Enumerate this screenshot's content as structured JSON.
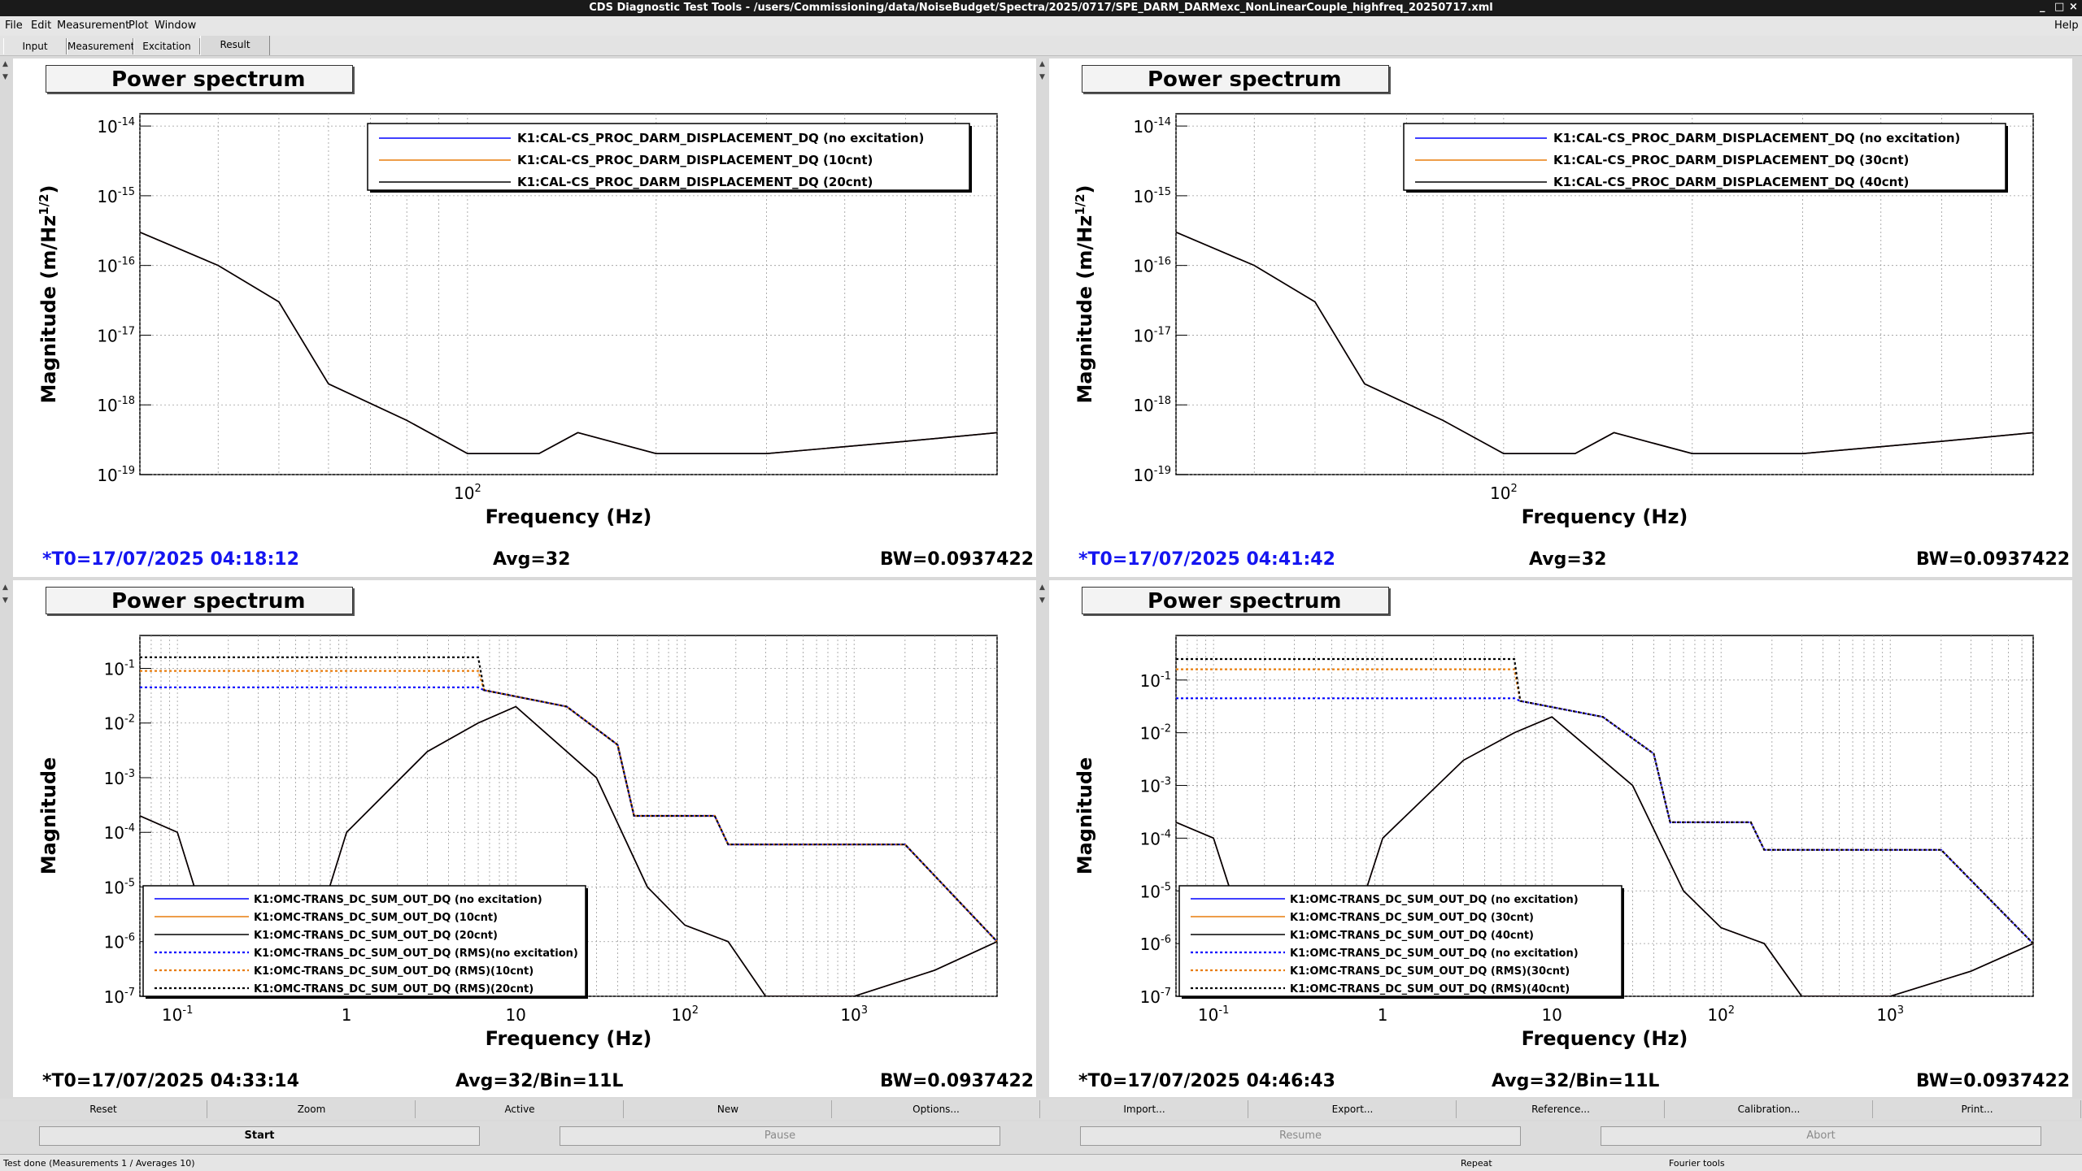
{
  "window": {
    "title": "CDS Diagnostic Test Tools - /users/Commissioning/data/NoiseBudget/Spectra/2025/0717/SPE_DARM_DARMexc_NonLinearCouple_highfreq_20250717.xml",
    "controls": [
      "_",
      "□",
      "×"
    ]
  },
  "menu": {
    "items": [
      "File",
      "Edit",
      "Measurement",
      "Plot",
      "Window"
    ],
    "help": "Help"
  },
  "tabs": [
    "Input",
    "Measurement",
    "Excitation",
    "Result"
  ],
  "colors": {
    "blue": "#0000ff",
    "orange": "#e87d0d",
    "black": "#000000",
    "timestamp_blue": "#1515f0"
  },
  "panels": [
    {
      "title": "Power spectrum",
      "ylabel": "Magnitude (m/Hz",
      "ylabel_sup": "1/2",
      "ylabel_end": ")",
      "xlabel": "Frequency (Hz)",
      "legend": [
        "K1:CAL-CS_PROC_DARM_DISPLACEMENT_DQ (no excitation)",
        "K1:CAL-CS_PROC_DARM_DISPLACEMENT_DQ (10cnt)",
        "K1:CAL-CS_PROC_DARM_DISPLACEMENT_DQ (20cnt)"
      ],
      "t0": "*T0=17/07/2025 04:18:12",
      "avg": "Avg=32",
      "bw": "BW=0.0937422"
    },
    {
      "title": "Power spectrum",
      "ylabel": "Magnitude (m/Hz",
      "ylabel_sup": "1/2",
      "ylabel_end": ")",
      "xlabel": "Frequency (Hz)",
      "legend": [
        "K1:CAL-CS_PROC_DARM_DISPLACEMENT_DQ (no excitation)",
        "K1:CAL-CS_PROC_DARM_DISPLACEMENT_DQ (30cnt)",
        "K1:CAL-CS_PROC_DARM_DISPLACEMENT_DQ (40cnt)"
      ],
      "t0": "*T0=17/07/2025 04:41:42",
      "avg": "Avg=32",
      "bw": "BW=0.0937422"
    },
    {
      "title": "Power spectrum",
      "ylabel": "Magnitude",
      "xlabel": "Frequency (Hz)",
      "legend": [
        "K1:OMC-TRANS_DC_SUM_OUT_DQ (no excitation)",
        "K1:OMC-TRANS_DC_SUM_OUT_DQ (10cnt)",
        "K1:OMC-TRANS_DC_SUM_OUT_DQ (20cnt)",
        "K1:OMC-TRANS_DC_SUM_OUT_DQ (RMS)(no excitation)",
        "K1:OMC-TRANS_DC_SUM_OUT_DQ (RMS)(10cnt)",
        "K1:OMC-TRANS_DC_SUM_OUT_DQ (RMS)(20cnt)"
      ],
      "t0": "*T0=17/07/2025 04:33:14",
      "avg": "Avg=32/Bin=11L",
      "bw": "BW=0.0937422"
    },
    {
      "title": "Power spectrum",
      "ylabel": "Magnitude",
      "xlabel": "Frequency (Hz)",
      "legend": [
        "K1:OMC-TRANS_DC_SUM_OUT_DQ (no excitation)",
        "K1:OMC-TRANS_DC_SUM_OUT_DQ (30cnt)",
        "K1:OMC-TRANS_DC_SUM_OUT_DQ (40cnt)",
        "K1:OMC-TRANS_DC_SUM_OUT_DQ (no excitation)",
        "K1:OMC-TRANS_DC_SUM_OUT_DQ (RMS)(30cnt)",
        "K1:OMC-TRANS_DC_SUM_OUT_DQ (RMS)(40cnt)"
      ],
      "t0": "*T0=17/07/2025 04:46:43",
      "avg": "Avg=32/Bin=11L",
      "bw": "BW=0.0937422"
    }
  ],
  "chart_data": [
    {
      "type": "line",
      "xscale": "log",
      "yscale": "log",
      "grid": true,
      "legend_position": "top-right",
      "xlim": [
        30,
        700
      ],
      "ylim": [
        1e-19,
        1.5e-14
      ],
      "ytick_labels": [
        "10-14",
        "10-15",
        "10-16",
        "10-17",
        "10-18",
        "10-19"
      ],
      "xtick_labels": [
        "10 2"
      ],
      "series": [
        {
          "name": "K1:CAL-CS_PROC_DARM_DISPLACEMENT_DQ (no excitation)",
          "color": "#0000ff",
          "x": [
            30,
            40,
            50,
            60,
            80,
            100,
            130,
            150,
            200,
            300,
            500,
            700
          ],
          "y": [
            3e-16,
            1e-16,
            3e-17,
            2e-18,
            6e-19,
            2e-19,
            2e-19,
            4e-19,
            2e-19,
            2e-19,
            3e-19,
            4e-19
          ]
        },
        {
          "name": "K1:CAL-CS_PROC_DARM_DISPLACEMENT_DQ (10cnt)",
          "color": "#e87d0d",
          "x": [
            30,
            40,
            50,
            60,
            80,
            100,
            130,
            150,
            200,
            300,
            500,
            700
          ],
          "y": [
            3e-16,
            1e-16,
            3e-17,
            2e-18,
            6e-19,
            2e-19,
            2e-19,
            4e-19,
            2e-19,
            2e-19,
            3e-19,
            4e-19
          ]
        },
        {
          "name": "K1:CAL-CS_PROC_DARM_DISPLACEMENT_DQ (20cnt)",
          "color": "#000000",
          "x": [
            30,
            40,
            50,
            60,
            80,
            100,
            130,
            150,
            200,
            300,
            500,
            700
          ],
          "y": [
            3e-16,
            1e-16,
            3e-17,
            2e-18,
            6e-19,
            2e-19,
            2e-19,
            4e-19,
            2e-19,
            2e-19,
            3e-19,
            4e-19
          ]
        }
      ]
    },
    {
      "type": "line",
      "xscale": "log",
      "yscale": "log",
      "grid": true,
      "legend_position": "top-right",
      "xlim": [
        30,
        700
      ],
      "ylim": [
        1e-19,
        1.5e-14
      ],
      "ytick_labels": [
        "10-14",
        "10-15",
        "10-16",
        "10-17",
        "10-18",
        "10-19"
      ],
      "xtick_labels": [
        "10 2"
      ],
      "series": [
        {
          "name": "K1:CAL-CS_PROC_DARM_DISPLACEMENT_DQ (no excitation)",
          "color": "#0000ff",
          "x": [
            30,
            40,
            50,
            60,
            80,
            100,
            130,
            150,
            200,
            300,
            500,
            700
          ],
          "y": [
            3e-16,
            1e-16,
            3e-17,
            2e-18,
            6e-19,
            2e-19,
            2e-19,
            4e-19,
            2e-19,
            2e-19,
            3e-19,
            4e-19
          ]
        },
        {
          "name": "K1:CAL-CS_PROC_DARM_DISPLACEMENT_DQ (30cnt)",
          "color": "#e87d0d",
          "x": [
            30,
            40,
            50,
            60,
            80,
            100,
            130,
            150,
            200,
            300,
            500,
            700
          ],
          "y": [
            3e-16,
            1e-16,
            3e-17,
            2e-18,
            6e-19,
            2e-19,
            2e-19,
            4e-19,
            2e-19,
            2e-19,
            3e-19,
            4e-19
          ]
        },
        {
          "name": "K1:CAL-CS_PROC_DARM_DISPLACEMENT_DQ (40cnt)",
          "color": "#000000",
          "x": [
            30,
            40,
            50,
            60,
            80,
            100,
            130,
            150,
            200,
            300,
            500,
            700
          ],
          "y": [
            3e-16,
            1e-16,
            3e-17,
            2e-18,
            6e-19,
            2e-19,
            2e-19,
            4e-19,
            2e-19,
            2e-19,
            3e-19,
            4e-19
          ]
        }
      ]
    },
    {
      "type": "line",
      "xscale": "log",
      "yscale": "log",
      "grid": true,
      "legend_position": "bottom-left",
      "xlim": [
        0.06,
        7000
      ],
      "ylim": [
        1e-07,
        0.4
      ],
      "ytick_labels": [
        "10-1",
        "10-2",
        "10-3",
        "10-4",
        "10-5",
        "10-6",
        "10-7"
      ],
      "xtick_labels": [
        "10-1",
        "1",
        "10",
        "10 2",
        "10 3"
      ],
      "series": [
        {
          "name": "K1:OMC-TRANS_DC_SUM_OUT_DQ (no excitation)",
          "color": "#0000ff",
          "x": [
            0.06,
            0.1,
            0.2,
            0.5,
            1,
            3,
            6,
            10,
            30,
            60,
            100,
            180,
            300,
            1000,
            3000,
            7000
          ],
          "y": [
            0.0002,
            0.0001,
            1e-07,
            1e-07,
            0.0001,
            0.003,
            0.01,
            0.02,
            0.001,
            1e-05,
            2e-06,
            1e-06,
            1e-07,
            1e-07,
            3e-07,
            1e-06
          ]
        },
        {
          "name": "K1:OMC-TRANS_DC_SUM_OUT_DQ (10cnt)",
          "color": "#e87d0d",
          "x": [
            0.06,
            0.1,
            0.2,
            0.5,
            1,
            3,
            6,
            10,
            30,
            60,
            100,
            180,
            300,
            1000,
            3000,
            7000
          ],
          "y": [
            0.0002,
            0.0001,
            1e-07,
            1e-07,
            0.0001,
            0.003,
            0.01,
            0.02,
            0.001,
            1e-05,
            2e-06,
            1e-06,
            1e-07,
            1e-07,
            3e-07,
            1e-06
          ]
        },
        {
          "name": "K1:OMC-TRANS_DC_SUM_OUT_DQ (20cnt)",
          "color": "#000000",
          "x": [
            0.06,
            0.1,
            0.2,
            0.5,
            1,
            3,
            6,
            10,
            30,
            60,
            100,
            180,
            300,
            1000,
            3000,
            7000
          ],
          "y": [
            0.0002,
            0.0001,
            1e-07,
            1e-07,
            0.0001,
            0.003,
            0.01,
            0.02,
            0.001,
            1e-05,
            2e-06,
            1e-06,
            1e-07,
            1e-07,
            3e-07,
            1e-06
          ]
        },
        {
          "name": "K1:OMC-TRANS_DC_SUM_OUT_DQ (RMS)(no excitation)",
          "color": "#0000ff",
          "dashed": true,
          "x": [
            0.06,
            6,
            6.5,
            20,
            40,
            50,
            150,
            180,
            2000,
            7000
          ],
          "y": [
            0.045,
            0.045,
            0.04,
            0.02,
            0.004,
            0.0002,
            0.0002,
            6e-05,
            6e-05,
            1e-06
          ]
        },
        {
          "name": "K1:OMC-TRANS_DC_SUM_OUT_DQ (RMS)(10cnt)",
          "color": "#e87d0d",
          "dashed": true,
          "x": [
            0.06,
            6,
            6.5,
            20,
            40,
            50,
            150,
            180,
            2000,
            7000
          ],
          "y": [
            0.09,
            0.09,
            0.04,
            0.02,
            0.004,
            0.0002,
            0.0002,
            6e-05,
            6e-05,
            1e-06
          ]
        },
        {
          "name": "K1:OMC-TRANS_DC_SUM_OUT_DQ (RMS)(20cnt)",
          "color": "#000000",
          "dashed": true,
          "x": [
            0.06,
            6,
            6.5,
            20,
            40,
            50,
            150,
            180,
            2000,
            7000
          ],
          "y": [
            0.16,
            0.16,
            0.04,
            0.02,
            0.004,
            0.0002,
            0.0002,
            6e-05,
            6e-05,
            1e-06
          ]
        }
      ]
    },
    {
      "type": "line",
      "xscale": "log",
      "yscale": "log",
      "grid": true,
      "legend_position": "bottom-left",
      "xlim": [
        0.06,
        7000
      ],
      "ylim": [
        1e-07,
        0.7
      ],
      "ytick_labels": [
        "10-1",
        "10-2",
        "10-3",
        "10-4",
        "10-5",
        "10-6",
        "10-7"
      ],
      "xtick_labels": [
        "10-1",
        "1",
        "10",
        "10 2",
        "10 3"
      ],
      "series": [
        {
          "name": "K1:OMC-TRANS_DC_SUM_OUT_DQ (no excitation)",
          "color": "#0000ff",
          "x": [
            0.06,
            0.1,
            0.2,
            0.5,
            1,
            3,
            6,
            10,
            30,
            60,
            100,
            180,
            300,
            1000,
            3000,
            7000
          ],
          "y": [
            0.0002,
            0.0001,
            1e-07,
            1e-07,
            0.0001,
            0.003,
            0.01,
            0.02,
            0.001,
            1e-05,
            2e-06,
            1e-06,
            1e-07,
            1e-07,
            3e-07,
            1e-06
          ]
        },
        {
          "name": "K1:OMC-TRANS_DC_SUM_OUT_DQ (30cnt)",
          "color": "#e87d0d",
          "x": [
            0.06,
            0.1,
            0.2,
            0.5,
            1,
            3,
            6,
            10,
            30,
            60,
            100,
            180,
            300,
            1000,
            3000,
            7000
          ],
          "y": [
            0.0002,
            0.0001,
            1e-07,
            1e-07,
            0.0001,
            0.003,
            0.01,
            0.02,
            0.001,
            1e-05,
            2e-06,
            1e-06,
            1e-07,
            1e-07,
            3e-07,
            1e-06
          ]
        },
        {
          "name": "K1:OMC-TRANS_DC_SUM_OUT_DQ (40cnt)",
          "color": "#000000",
          "x": [
            0.06,
            0.1,
            0.2,
            0.5,
            1,
            3,
            6,
            10,
            30,
            60,
            100,
            180,
            300,
            1000,
            3000,
            7000
          ],
          "y": [
            0.0002,
            0.0001,
            1e-07,
            1e-07,
            0.0001,
            0.003,
            0.01,
            0.02,
            0.001,
            1e-05,
            2e-06,
            1e-06,
            1e-07,
            1e-07,
            3e-07,
            1e-06
          ]
        },
        {
          "name": "K1:OMC-TRANS_DC_SUM_OUT_DQ (no excitation)",
          "color": "#0000ff",
          "dashed": true,
          "x": [
            0.06,
            6,
            6.5,
            20,
            40,
            50,
            150,
            180,
            2000,
            7000
          ],
          "y": [
            0.045,
            0.045,
            0.04,
            0.02,
            0.004,
            0.0002,
            0.0002,
            6e-05,
            6e-05,
            1e-06
          ]
        },
        {
          "name": "K1:OMC-TRANS_DC_SUM_OUT_DQ (RMS)(30cnt)",
          "color": "#e87d0d",
          "dashed": true,
          "x": [
            0.06,
            6,
            6.5,
            20,
            40,
            50,
            150,
            180,
            2000,
            7000
          ],
          "y": [
            0.16,
            0.16,
            0.04,
            0.02,
            0.004,
            0.0002,
            0.0002,
            6e-05,
            6e-05,
            1e-06
          ]
        },
        {
          "name": "K1:OMC-TRANS_DC_SUM_OUT_DQ (RMS)(40cnt)",
          "color": "#000000",
          "dashed": true,
          "x": [
            0.06,
            6,
            6.5,
            20,
            40,
            50,
            150,
            180,
            2000,
            7000
          ],
          "y": [
            0.25,
            0.25,
            0.04,
            0.02,
            0.004,
            0.0002,
            0.0002,
            6e-05,
            6e-05,
            1e-06
          ]
        }
      ]
    }
  ],
  "buttons_row1": [
    "Reset",
    "Zoom",
    "Active",
    "New",
    "Options...",
    "Import...",
    "Export...",
    "Reference...",
    "Calibration...",
    "Print..."
  ],
  "buttons_row2": [
    "Start",
    "Pause",
    "Resume",
    "Abort"
  ],
  "statusbar": {
    "left": "Test done (Measurements 1 / Averages 10)",
    "mid": "Repeat",
    "right": "Fourier tools"
  }
}
